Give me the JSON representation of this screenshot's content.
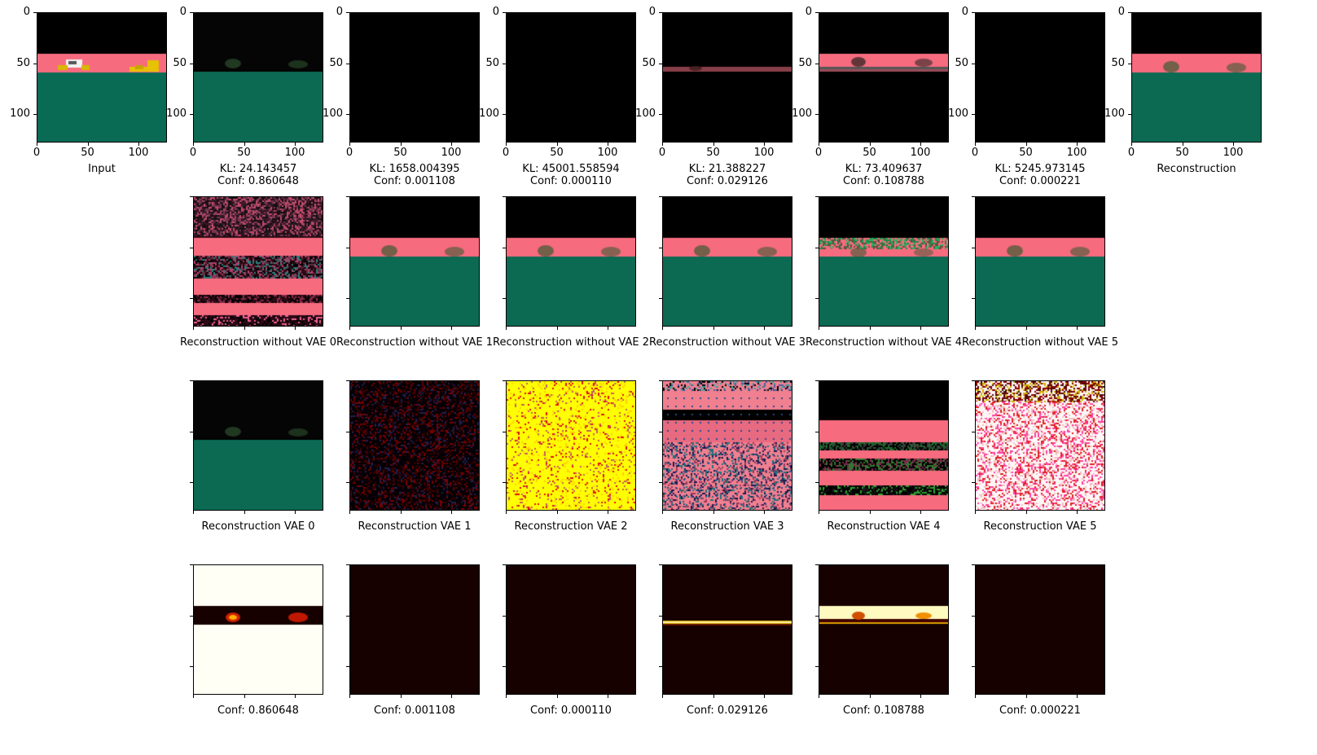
{
  "axis_ticks": {
    "y": [
      "0",
      "50",
      "100"
    ],
    "x": [
      "0",
      "50",
      "100"
    ]
  },
  "row1": {
    "captions": [
      "Input",
      "KL: 24.143457\nConf: 0.860648",
      "KL: 1658.004395\nConf: 0.001108",
      "KL: 45001.558594\nConf: 0.000110",
      "KL: 21.388227\nConf: 0.029126",
      "KL: 73.409637\nConf: 0.108788",
      "KL: 5245.973145\nConf: 0.000221",
      "Reconstruction"
    ]
  },
  "row2": {
    "captions": [
      "Reconstruction without VAE 0",
      "Reconstruction without VAE 1",
      "Reconstruction without VAE 2",
      "Reconstruction without VAE 3",
      "Reconstruction without VAE 4",
      "Reconstruction without VAE 5"
    ]
  },
  "row3": {
    "captions": [
      "Reconstruction VAE 0",
      "Reconstruction VAE 1",
      "Reconstruction VAE 2",
      "Reconstruction VAE 3",
      "Reconstruction VAE 4",
      "Reconstruction VAE 5"
    ]
  },
  "row4": {
    "captions": [
      "Conf: 0.860648",
      "Conf: 0.001108",
      "Conf: 0.000110",
      "Conf: 0.029126",
      "Conf: 0.108788",
      "Conf: 0.000221"
    ]
  },
  "colors": {
    "sky": "#000000",
    "road_pink": "#f76b7f",
    "ground_green": "#0a6b55",
    "noise_yellow": "#ffff00",
    "heat_white": "#fffff5",
    "heat_dark": "#1a0000"
  }
}
